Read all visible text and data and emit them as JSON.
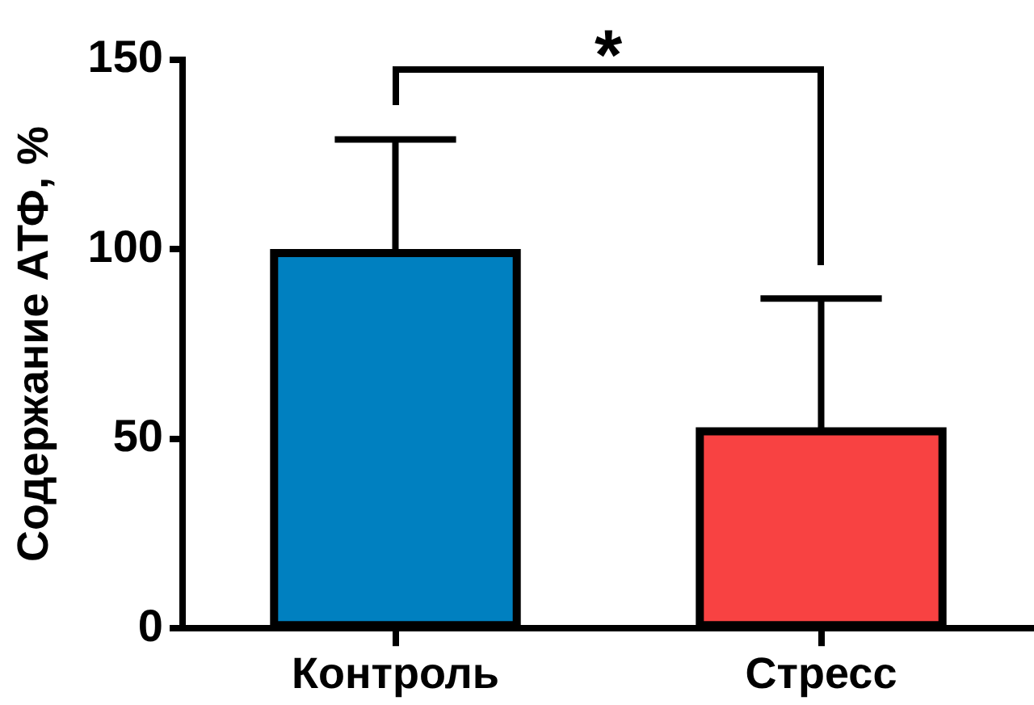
{
  "chart_data": {
    "type": "bar",
    "ylabel": "Содержание АТФ, %",
    "categories": [
      "Контроль",
      "Стресс"
    ],
    "values": [
      99,
      52
    ],
    "colors": [
      "#0080c0",
      "#f84242"
    ],
    "errors": [
      [
        99,
        129
      ],
      [
        52,
        87
      ]
    ],
    "ylim": [
      0,
      150
    ],
    "yticks": [
      0,
      50,
      100,
      150
    ],
    "grid": false,
    "legend": false,
    "annotations": [
      "*"
    ]
  }
}
